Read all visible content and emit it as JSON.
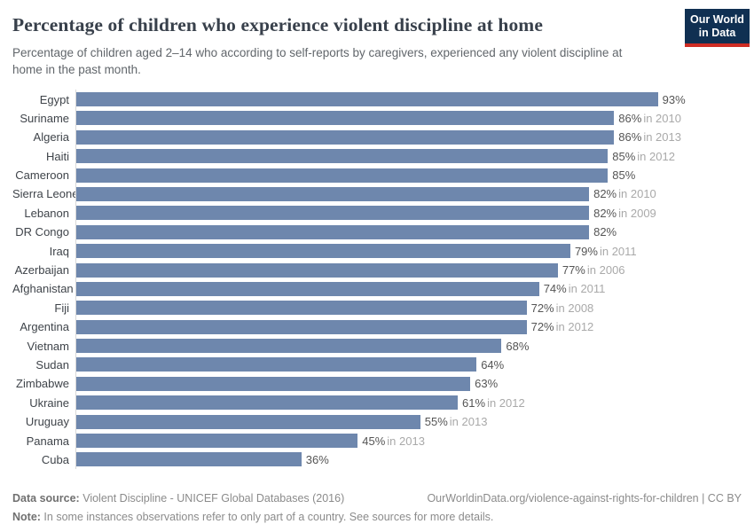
{
  "header": {
    "title": "Percentage of children who experience violent discipline at home",
    "subtitle": "Percentage of children aged 2–14 who according to self-reports by caregivers, experienced any violent discipline at home in the past month.",
    "logo": {
      "line1": "Our World",
      "line2": "in Data",
      "bg_color": "#103052",
      "accent_color": "#cf2d24"
    }
  },
  "chart_data": {
    "type": "bar",
    "orientation": "horizontal",
    "title": "Percentage of children who experience violent discipline at home",
    "subtitle": "Percentage of children aged 2–14 who according to self-reports by caregivers, experienced any violent discipline at home in the past month.",
    "unit": "%",
    "xlim": [
      0,
      100
    ],
    "grid": false,
    "legend": "none",
    "bar_color": "#6e87ad",
    "value_label_color": "#555555",
    "year_label_color": "#a9a9a9",
    "entries": [
      {
        "country": "Egypt",
        "value": 93,
        "value_label": "93%",
        "year_label": ""
      },
      {
        "country": "Suriname",
        "value": 86,
        "value_label": "86%",
        "year_label": "in 2010"
      },
      {
        "country": "Algeria",
        "value": 86,
        "value_label": "86%",
        "year_label": "in 2013"
      },
      {
        "country": "Haiti",
        "value": 85,
        "value_label": "85%",
        "year_label": "in 2012"
      },
      {
        "country": "Cameroon",
        "value": 85,
        "value_label": "85%",
        "year_label": ""
      },
      {
        "country": "Sierra Leone",
        "value": 82,
        "value_label": "82%",
        "year_label": "in 2010"
      },
      {
        "country": "Lebanon",
        "value": 82,
        "value_label": "82%",
        "year_label": "in 2009"
      },
      {
        "country": "DR Congo",
        "value": 82,
        "value_label": "82%",
        "year_label": ""
      },
      {
        "country": "Iraq",
        "value": 79,
        "value_label": "79%",
        "year_label": "in 2011"
      },
      {
        "country": "Azerbaijan",
        "value": 77,
        "value_label": "77%",
        "year_label": "in 2006"
      },
      {
        "country": "Afghanistan",
        "value": 74,
        "value_label": "74%",
        "year_label": "in 2011"
      },
      {
        "country": "Fiji",
        "value": 72,
        "value_label": "72%",
        "year_label": "in 2008"
      },
      {
        "country": "Argentina",
        "value": 72,
        "value_label": "72%",
        "year_label": "in 2012"
      },
      {
        "country": "Vietnam",
        "value": 68,
        "value_label": "68%",
        "year_label": ""
      },
      {
        "country": "Sudan",
        "value": 64,
        "value_label": "64%",
        "year_label": ""
      },
      {
        "country": "Zimbabwe",
        "value": 63,
        "value_label": "63%",
        "year_label": ""
      },
      {
        "country": "Ukraine",
        "value": 61,
        "value_label": "61%",
        "year_label": "in 2012"
      },
      {
        "country": "Uruguay",
        "value": 55,
        "value_label": "55%",
        "year_label": "in 2013"
      },
      {
        "country": "Panama",
        "value": 45,
        "value_label": "45%",
        "year_label": "in 2013"
      },
      {
        "country": "Cuba",
        "value": 36,
        "value_label": "36%",
        "year_label": ""
      }
    ]
  },
  "footer": {
    "data_source_label": "Data source:",
    "data_source": " Violent Discipline - UNICEF Global Databases (2016)",
    "link": "OurWorldinData.org/violence-against-rights-for-children | CC BY",
    "note_label": "Note:",
    "note": " In some instances observations refer to only part of a country. See sources for more details."
  }
}
